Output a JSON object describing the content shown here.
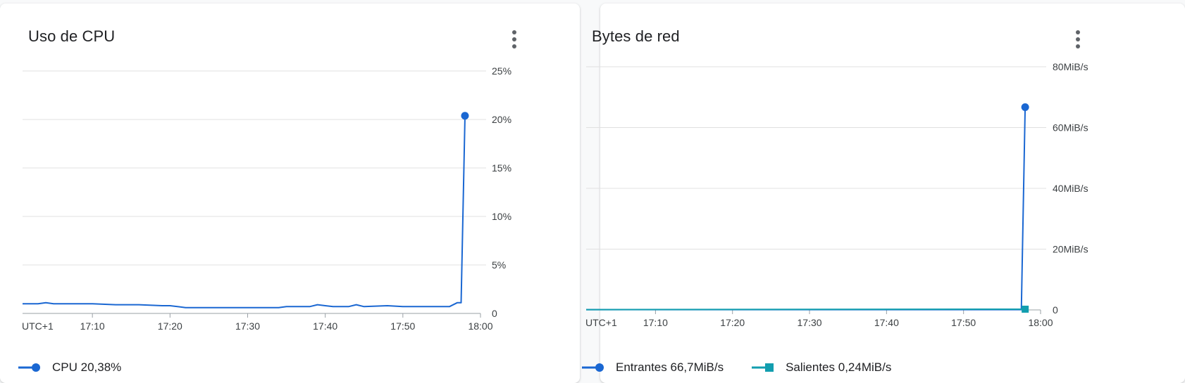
{
  "cards": {
    "cpu": {
      "title": "Uso de CPU",
      "legend": [
        {
          "label": "CPU 20,38%",
          "color": "#1a67d2",
          "marker": "circle"
        }
      ]
    },
    "net": {
      "title": "Bytes de red",
      "legend": [
        {
          "label": "Entrantes 66,7MiB/s",
          "color": "#1a67d2",
          "marker": "circle"
        },
        {
          "label": "Salientes 0,24MiB/s",
          "color": "#129eaf",
          "marker": "square"
        }
      ]
    }
  },
  "chart_data": [
    {
      "type": "line",
      "title": "Uso de CPU",
      "timezone_label": "UTC+1",
      "x_ticks": [
        "17:10",
        "17:20",
        "17:30",
        "17:40",
        "17:50",
        "18:00"
      ],
      "xlim": [
        "17:01",
        "18:00"
      ],
      "y_ticks": [
        "0",
        "5%",
        "10%",
        "15%",
        "20%",
        "25%"
      ],
      "ylim": [
        0,
        25
      ],
      "y_unit": "%",
      "grid": true,
      "series": [
        {
          "name": "CPU",
          "color": "#1a67d2",
          "x": [
            "17:01",
            "17:03",
            "17:04",
            "17:05",
            "17:07",
            "17:10",
            "17:13",
            "17:16",
            "17:19",
            "17:20",
            "17:22",
            "17:23",
            "17:25",
            "17:28",
            "17:31",
            "17:34",
            "17:35",
            "17:38",
            "17:39",
            "17:40",
            "17:41",
            "17:43",
            "17:44",
            "17:45",
            "17:48",
            "17:50",
            "17:52",
            "17:54",
            "17:56",
            "17:57",
            "17:57.5",
            "17:58"
          ],
          "values": [
            1.0,
            1.0,
            1.1,
            1.0,
            1.0,
            1.0,
            0.9,
            0.9,
            0.8,
            0.8,
            0.6,
            0.6,
            0.6,
            0.6,
            0.6,
            0.6,
            0.7,
            0.7,
            0.9,
            0.8,
            0.7,
            0.7,
            0.9,
            0.7,
            0.8,
            0.7,
            0.7,
            0.7,
            0.7,
            1.1,
            1.1,
            20.38
          ]
        }
      ]
    },
    {
      "type": "line",
      "title": "Bytes de red",
      "timezone_label": "UTC+1",
      "x_ticks": [
        "17:10",
        "17:20",
        "17:30",
        "17:40",
        "17:50",
        "18:00"
      ],
      "xlim": [
        "17:01",
        "18:00"
      ],
      "y_ticks": [
        "0",
        "20MiB/s",
        "40MiB/s",
        "60MiB/s",
        "80MiB/s"
      ],
      "ylim": [
        0,
        80
      ],
      "y_unit": "MiB/s",
      "grid": true,
      "series": [
        {
          "name": "Entrantes",
          "color": "#1a67d2",
          "x": [
            "17:01",
            "17:57.5",
            "17:58"
          ],
          "values": [
            0.1,
            0.1,
            66.7
          ]
        },
        {
          "name": "Salientes",
          "color": "#129eaf",
          "x": [
            "17:01",
            "17:58"
          ],
          "values": [
            0.1,
            0.24
          ]
        }
      ]
    }
  ]
}
